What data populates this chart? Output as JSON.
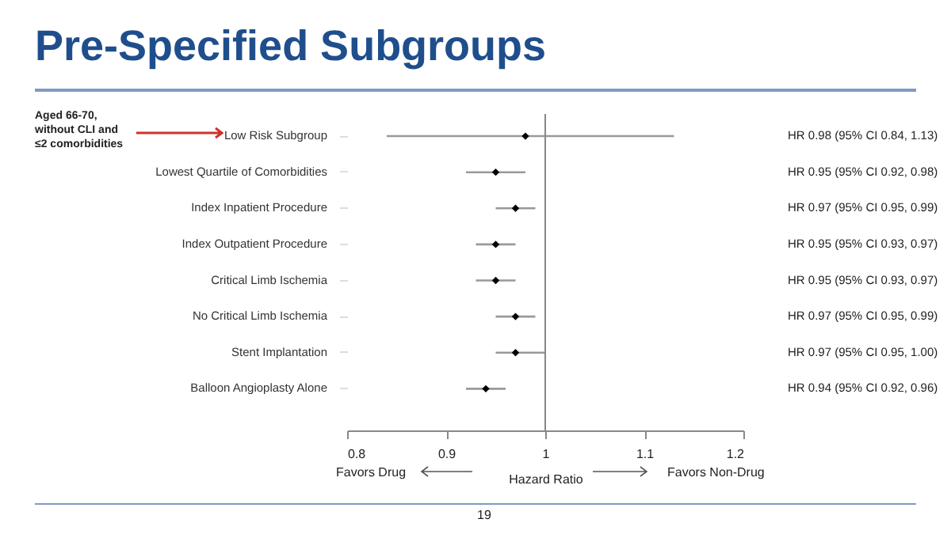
{
  "chart_data": {
    "type": "scatter",
    "orientation": "horizontal",
    "title": "Pre-Specified Subgroups",
    "xlabel": "Hazard Ratio",
    "categories": [
      "Low Risk Subgroup",
      "Lowest Quartile of Comorbidities",
      "Index Inpatient Procedure",
      "Index Outpatient Procedure",
      "Critical Limb Ischemia",
      "No Critical Limb Ischemia",
      "Stent Implantation",
      "Balloon Angioplasty Alone"
    ],
    "values": [
      0.98,
      0.95,
      0.97,
      0.95,
      0.95,
      0.97,
      0.97,
      0.94
    ],
    "errors": [
      [
        0.84,
        1.13
      ],
      [
        0.92,
        0.98
      ],
      [
        0.95,
        0.99
      ],
      [
        0.93,
        0.97
      ],
      [
        0.93,
        0.97
      ],
      [
        0.95,
        0.99
      ],
      [
        0.95,
        1.0
      ],
      [
        0.92,
        0.96
      ]
    ],
    "value_labels": [
      "HR 0.98 (95% CI 0.84, 1.13)",
      "HR 0.95 (95% CI 0.92, 0.98)",
      "HR 0.97 (95% CI 0.95, 0.99)",
      "HR 0.95 (95% CI 0.93, 0.97)",
      "HR 0.95 (95% CI 0.93, 0.97)",
      "HR 0.97 (95% CI 0.95, 0.99)",
      "HR 0.97 (95% CI 0.95, 1.00)",
      "HR 0.94 (95% CI 0.92, 0.96)"
    ],
    "color": "#000000",
    "marker": "diamond",
    "xlim": [
      0.8,
      1.2
    ],
    "xticks": [
      {
        "value": 0.8,
        "label": "0.8"
      },
      {
        "value": 0.9,
        "label": "0.9"
      },
      {
        "value": 1,
        "label": "1"
      },
      {
        "value": 1.1,
        "label": "1.1"
      },
      {
        "value": 1.2,
        "label": "1.2"
      }
    ],
    "ref_lines": [
      {
        "axis": "x",
        "value": 1,
        "color": "#888888"
      }
    ],
    "annotations": [
      "Aged 66-70, without CLI and ≤2 comorbidities",
      "Favors Drug",
      "Favors Non-Drug",
      "19"
    ]
  }
}
